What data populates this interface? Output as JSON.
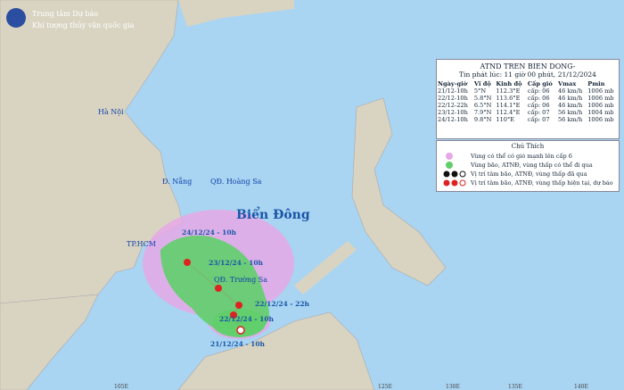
{
  "header": {
    "title": "Trung tâm Dự báo",
    "subtitle": "Khí tượng thủy văn quốc gia"
  },
  "places": {
    "hanoi": "Hà Nội",
    "danang": "Đ. Nẵng",
    "hoangsa": "QĐ. Hoàng Sa",
    "biendong": "Biển Đông",
    "hcm": "TP.HCM",
    "truongsa": "QĐ. Trường Sa"
  },
  "track": [
    "21/12/24 - 10h",
    "22/12/24 - 10h",
    "22/12/24 - 22h",
    "23/12/24 - 10h",
    "24/12/24 - 10h"
  ],
  "info": {
    "title": "ATND TREN BIEN DONG-",
    "subtitle": "Tin phát lúc: 11 giờ 00 phút, 21/12/2024",
    "headers": [
      "Ngày-giờ",
      "Vĩ độ",
      "Kinh độ",
      "Cấp gió",
      "Vmax",
      "Pmin"
    ],
    "rows": [
      [
        "21/12-10h",
        "5°N",
        "112.3°E",
        "cấp: 06",
        "46 km/h",
        "1006 mb"
      ],
      [
        "22/12-10h",
        "5.8°N",
        "113.6°E",
        "cấp: 06",
        "46 km/h",
        "1006 mb"
      ],
      [
        "22/12-22h",
        "6.5°N",
        "114.1°E",
        "cấp: 06",
        "46 km/h",
        "1006 mb"
      ],
      [
        "23/12-10h",
        "7.9°N",
        "112.4°E",
        "cấp: 07",
        "56 km/h",
        "1004 mb"
      ],
      [
        "24/12-10h",
        "9.8°N",
        "110°E",
        "cấp: 07",
        "56 km/h",
        "1006 mb"
      ]
    ]
  },
  "legend": {
    "title": "Chú Thích",
    "items": [
      "Vùng có thể có gió mạnh lên cấp 6",
      "Vùng bão, ATNĐ, vùng thấp có thể đi qua",
      "Vị trí tâm bão, ATNĐ, vùng thấp đã qua",
      "Vị trí tâm bão, ATNĐ, vùng thấp hiện tại, dự báo"
    ]
  },
  "longitudes": [
    "105E",
    "125E",
    "130E",
    "135E",
    "140E"
  ]
}
